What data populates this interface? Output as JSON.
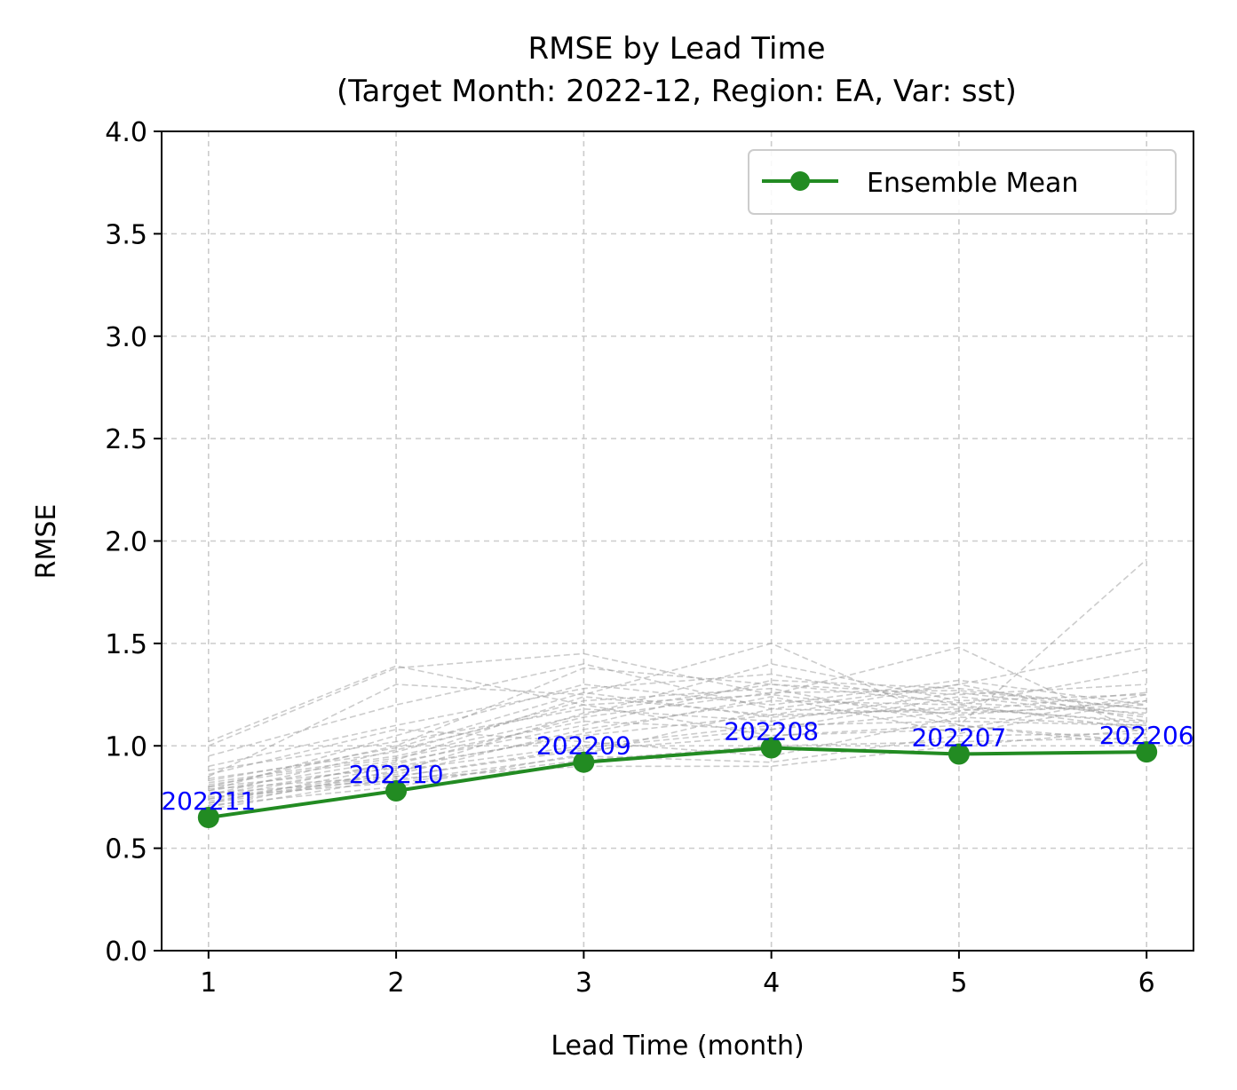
{
  "chart_data": {
    "type": "line",
    "title_line1": "RMSE by Lead Time",
    "title_line2": "(Target Month: 2022-12, Region: EA, Var: sst)",
    "xlabel": "Lead Time (month)",
    "ylabel": "RMSE",
    "xlim": [
      0.75,
      6.25
    ],
    "ylim": [
      0,
      4
    ],
    "xticks": [
      1,
      2,
      3,
      4,
      5,
      6
    ],
    "xtick_labels": [
      "1",
      "2",
      "3",
      "4",
      "5",
      "6"
    ],
    "yticks": [
      0,
      0.5,
      1,
      1.5,
      2,
      2.5,
      3,
      3.5,
      4
    ],
    "ytick_labels": [
      "0.0",
      "0.5",
      "1.0",
      "1.5",
      "2.0",
      "2.5",
      "3.0",
      "3.5",
      "4.0"
    ],
    "grid": true,
    "legend": {
      "placement": "top-right",
      "entries": [
        "Ensemble Mean"
      ]
    },
    "x": [
      1,
      2,
      3,
      4,
      5,
      6
    ],
    "series": [
      {
        "name": "Ensemble Mean",
        "values": [
          0.65,
          0.78,
          0.92,
          0.99,
          0.96,
          0.97
        ],
        "color": "#228B22"
      }
    ],
    "point_labels": [
      "202211",
      "202210",
      "202209",
      "202208",
      "202207",
      "202206"
    ],
    "point_label_color": "#0000ff",
    "members_color": "#999999",
    "members": [
      [
        1.02,
        1.39,
        1.2,
        1.05,
        1.1,
        1.0
      ],
      [
        1.0,
        1.38,
        1.45,
        1.25,
        1.48,
        1.05
      ],
      [
        0.85,
        1.3,
        1.25,
        1.5,
        1.1,
        1.91
      ],
      [
        0.95,
        1.2,
        1.4,
        1.18,
        1.3,
        1.48
      ],
      [
        0.9,
        1.1,
        1.28,
        1.35,
        1.2,
        1.37
      ],
      [
        0.8,
        1.0,
        1.38,
        1.3,
        1.25,
        1.3
      ],
      [
        0.82,
        0.95,
        1.15,
        1.4,
        1.22,
        1.25
      ],
      [
        0.78,
        1.05,
        1.3,
        1.2,
        1.32,
        1.2
      ],
      [
        0.76,
        0.98,
        1.2,
        1.25,
        1.15,
        1.22
      ],
      [
        0.74,
        0.92,
        1.1,
        1.32,
        1.28,
        1.18
      ],
      [
        0.88,
        1.02,
        1.18,
        1.12,
        1.26,
        1.15
      ],
      [
        0.72,
        0.9,
        1.05,
        1.15,
        1.18,
        1.12
      ],
      [
        0.7,
        0.88,
        1.0,
        1.1,
        1.12,
        1.1
      ],
      [
        0.79,
        0.85,
        0.98,
        1.05,
        1.08,
        1.25
      ],
      [
        0.73,
        0.86,
        1.08,
        1.22,
        1.2,
        1.08
      ],
      [
        0.81,
        0.94,
        1.12,
        1.08,
        1.24,
        1.14
      ],
      [
        0.77,
        0.83,
        0.95,
        0.92,
        1.05,
        1.06
      ],
      [
        0.75,
        0.82,
        0.93,
        1.0,
        1.02,
        1.04
      ],
      [
        0.71,
        0.8,
        0.96,
        1.18,
        1.16,
        1.2
      ],
      [
        0.84,
        0.97,
        1.22,
        1.28,
        1.1,
        1.02
      ],
      [
        0.86,
        1.08,
        1.02,
        0.95,
        1.14,
        1.1
      ],
      [
        0.74,
        0.87,
        1.16,
        1.3,
        1.21,
        1.16
      ],
      [
        0.69,
        0.84,
        0.9,
        0.9,
        1.0,
        1.08
      ],
      [
        0.78,
        0.93,
        1.24,
        1.15,
        1.3,
        1.12
      ],
      [
        0.8,
        0.89,
        1.06,
        1.24,
        1.06,
        1.22
      ],
      [
        0.76,
        0.91,
        1.14,
        1.26,
        1.27,
        1.18
      ],
      [
        0.72,
        0.85,
        0.99,
        1.08,
        1.17,
        1.26
      ],
      [
        0.83,
        0.99,
        1.26,
        1.14,
        1.19,
        1.11
      ]
    ]
  }
}
